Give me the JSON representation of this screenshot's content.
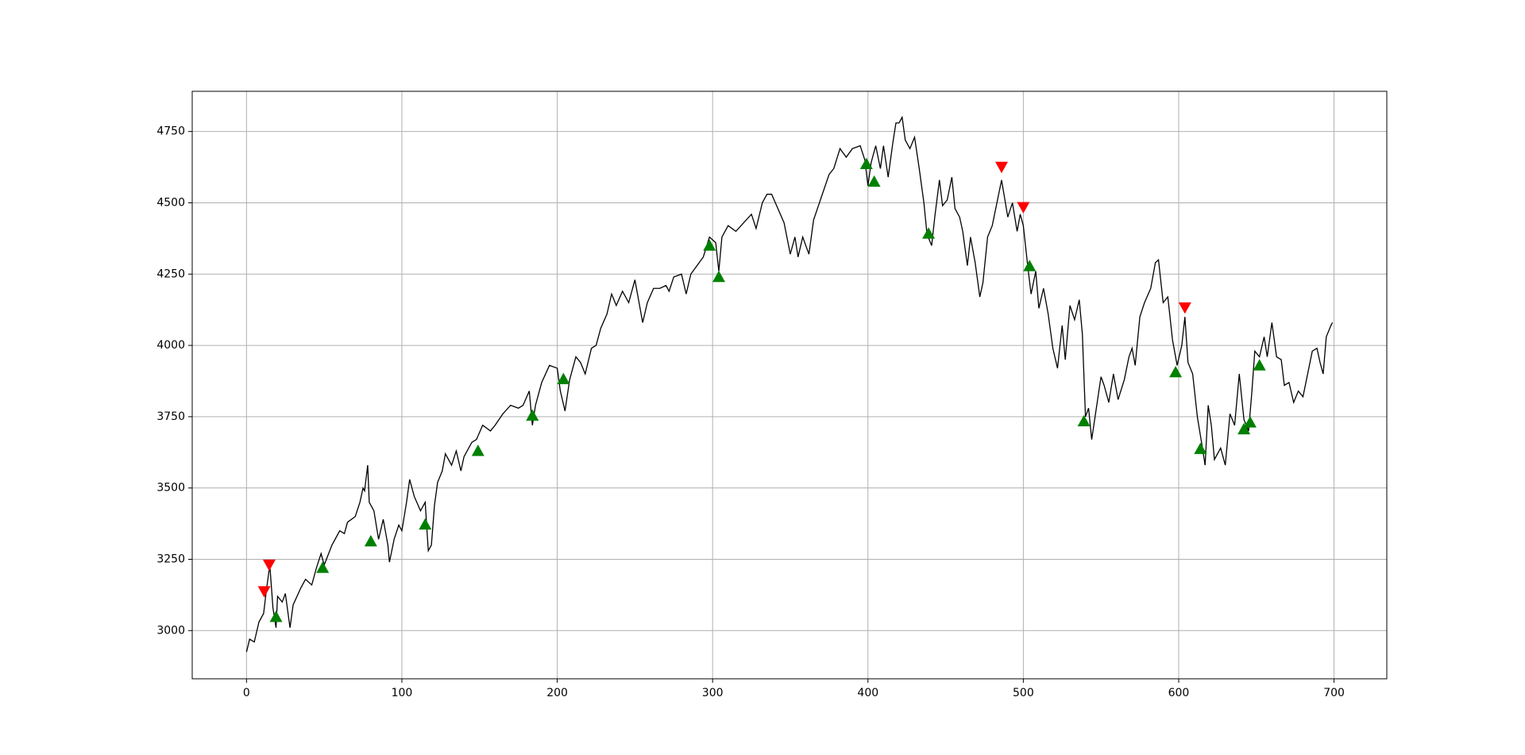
{
  "chart_data": {
    "type": "line",
    "xlim": [
      -34.95,
      733.95
    ],
    "ylim": [
      2831,
      4891
    ],
    "xticks": [
      0,
      100,
      200,
      300,
      400,
      500,
      600,
      700
    ],
    "yticks": [
      3000,
      3250,
      3500,
      3750,
      4000,
      4250,
      4500,
      4750
    ],
    "grid": true,
    "series": [
      {
        "marker": "line",
        "color": "#000000",
        "x": [
          0,
          2,
          5,
          8,
          11,
          13,
          15,
          17,
          19,
          20,
          23,
          25,
          28,
          30,
          35,
          38,
          42,
          45,
          48,
          50,
          55,
          60,
          63,
          65,
          70,
          73,
          75,
          76,
          78,
          79,
          82,
          85,
          88,
          91,
          92,
          95,
          98,
          100,
          103,
          105,
          108,
          112,
          115,
          117,
          119,
          121,
          123,
          126,
          128,
          132,
          135,
          138,
          140,
          145,
          148,
          152,
          157,
          160,
          165,
          170,
          175,
          178,
          182,
          184,
          186,
          190,
          195,
          200,
          202,
          205,
          208,
          212,
          215,
          218,
          222,
          225,
          228,
          232,
          235,
          238,
          242,
          246,
          250,
          255,
          258,
          262,
          266,
          270,
          272,
          275,
          280,
          283,
          286,
          290,
          294,
          298,
          302,
          304,
          306,
          310,
          315,
          320,
          325,
          328,
          332,
          335,
          338,
          342,
          346,
          350,
          353,
          355,
          358,
          362,
          365,
          370,
          375,
          378,
          382,
          386,
          390,
          395,
          398,
          400,
          402,
          405,
          408,
          410,
          413,
          416,
          418,
          420,
          422,
          424,
          427,
          430,
          433,
          436,
          438,
          441,
          443,
          446,
          448,
          451,
          454,
          456,
          459,
          461,
          464,
          466,
          469,
          472,
          474,
          477,
          480,
          483,
          486,
          490,
          493,
          496,
          498,
          500,
          503,
          505,
          508,
          510,
          513,
          516,
          519,
          522,
          525,
          527,
          530,
          533,
          536,
          538,
          540,
          542,
          544,
          547,
          550,
          552,
          555,
          558,
          561,
          565,
          568,
          570,
          572,
          575,
          578,
          582,
          585,
          587,
          590,
          593,
          596,
          599,
          602,
          604,
          606,
          609,
          612,
          615,
          617,
          619,
          621,
          623,
          627,
          630,
          633,
          636,
          639,
          642,
          645,
          647,
          649,
          652,
          655,
          657,
          660,
          663,
          666,
          668,
          671,
          674,
          677,
          680,
          683,
          686,
          689,
          691,
          693,
          695,
          698,
          699
        ],
        "values": [
          2925,
          2970,
          2960,
          3030,
          3060,
          3150,
          3230,
          3080,
          3010,
          3120,
          3100,
          3130,
          3010,
          3090,
          3150,
          3180,
          3160,
          3220,
          3270,
          3230,
          3300,
          3350,
          3340,
          3380,
          3400,
          3450,
          3500,
          3490,
          3580,
          3450,
          3420,
          3320,
          3390,
          3300,
          3240,
          3320,
          3370,
          3350,
          3450,
          3530,
          3470,
          3420,
          3450,
          3280,
          3300,
          3440,
          3520,
          3560,
          3620,
          3580,
          3630,
          3560,
          3610,
          3660,
          3670,
          3720,
          3700,
          3720,
          3760,
          3790,
          3780,
          3790,
          3840,
          3720,
          3790,
          3870,
          3930,
          3920,
          3840,
          3770,
          3880,
          3960,
          3940,
          3900,
          3990,
          4000,
          4060,
          4110,
          4180,
          4140,
          4190,
          4150,
          4230,
          4080,
          4150,
          4200,
          4200,
          4210,
          4190,
          4240,
          4250,
          4180,
          4250,
          4280,
          4310,
          4380,
          4360,
          4260,
          4380,
          4420,
          4400,
          4430,
          4460,
          4410,
          4500,
          4530,
          4530,
          4480,
          4430,
          4320,
          4380,
          4310,
          4380,
          4320,
          4440,
          4520,
          4600,
          4620,
          4690,
          4660,
          4690,
          4700,
          4650,
          4560,
          4640,
          4700,
          4620,
          4700,
          4590,
          4710,
          4780,
          4780,
          4800,
          4720,
          4690,
          4730,
          4620,
          4500,
          4390,
          4350,
          4450,
          4580,
          4490,
          4510,
          4590,
          4480,
          4450,
          4400,
          4280,
          4380,
          4290,
          4170,
          4220,
          4380,
          4420,
          4500,
          4580,
          4450,
          4500,
          4400,
          4460,
          4420,
          4270,
          4180,
          4260,
          4130,
          4200,
          4110,
          3990,
          3920,
          4070,
          3950,
          4140,
          4090,
          4160,
          4040,
          3750,
          3780,
          3670,
          3780,
          3890,
          3860,
          3800,
          3900,
          3810,
          3880,
          3960,
          3990,
          3930,
          4100,
          4150,
          4200,
          4290,
          4300,
          4150,
          4170,
          4020,
          3930,
          4000,
          4100,
          3940,
          3900,
          3750,
          3650,
          3580,
          3790,
          3720,
          3600,
          3640,
          3580,
          3760,
          3720,
          3900,
          3740,
          3700,
          3830,
          3980,
          3960,
          4030,
          3960,
          4080,
          3960,
          3950,
          3860,
          3870,
          3800,
          3840,
          3820,
          3900,
          3980,
          3990,
          3940,
          3900,
          4030,
          4070,
          4080
        ]
      },
      {
        "marker": "triangle-up",
        "color": "#008000",
        "x": [
          19,
          49,
          80,
          115,
          149,
          184,
          204,
          298,
          304,
          399,
          404,
          439,
          504,
          539,
          598,
          614,
          642,
          646,
          652
        ],
        "values": [
          3048,
          3220,
          3313,
          3372,
          3630,
          3754,
          3882,
          4350,
          4240,
          4636,
          4574,
          4392,
          4278,
          3734,
          3906,
          3637,
          3706,
          3730,
          3930
        ]
      },
      {
        "marker": "triangle-down",
        "color": "#ff0000",
        "x": [
          11.4,
          14.6,
          486,
          500,
          604
        ],
        "values": [
          3138,
          3231,
          4626,
          4485,
          4133
        ]
      }
    ]
  }
}
